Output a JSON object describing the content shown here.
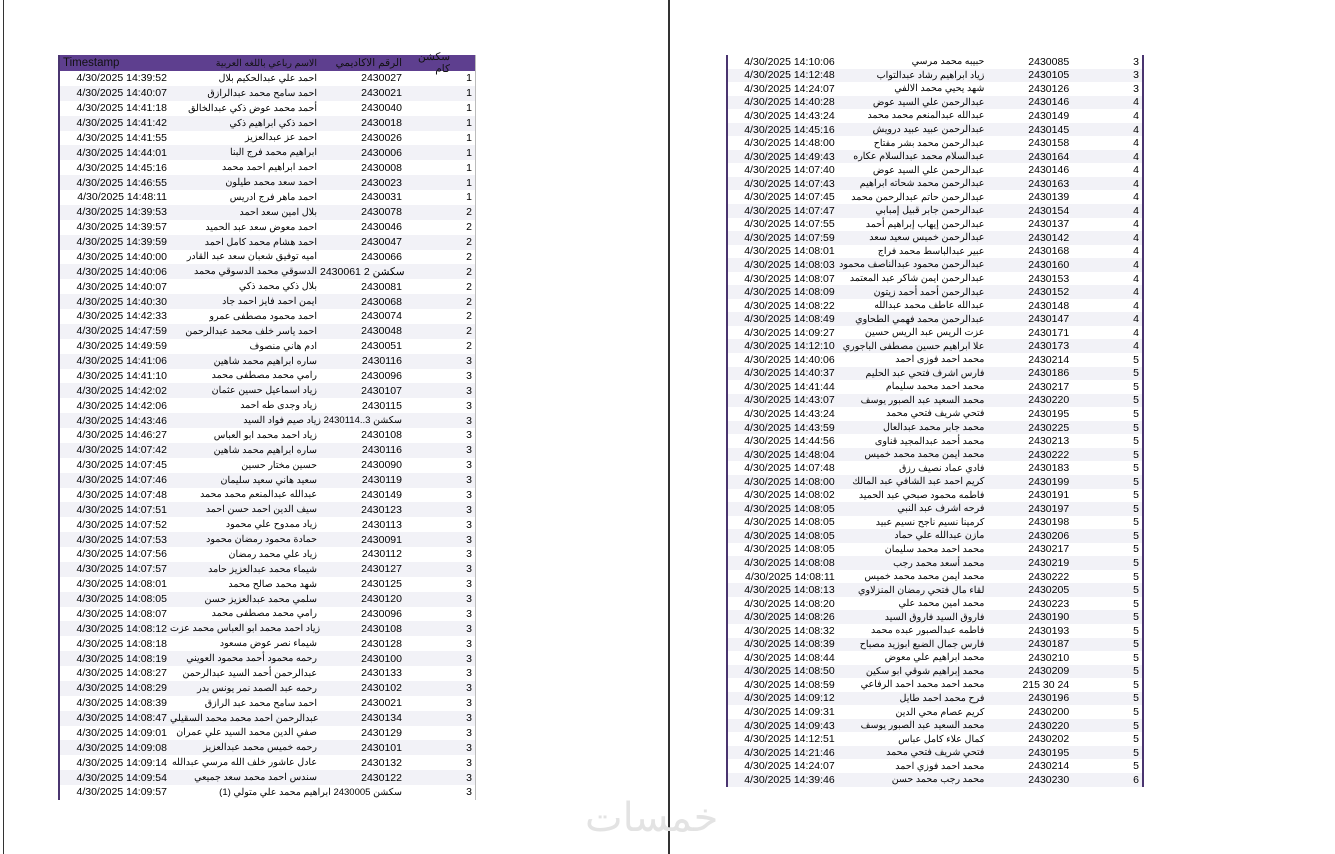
{
  "watermark": "خمسات",
  "header": {
    "timestamp": "Timestamp",
    "name": "الاسم رباعي باللغه العربية",
    "id": "الرقم الاكاديمي",
    "section": "سكشن كام"
  },
  "colors": {
    "header_bg": "#5e3f8f",
    "border": "#4a3570"
  },
  "left_rows": [
    [
      "4/30/2025 14:39:52",
      "احمد علي عبدالحكيم بلال",
      "2430027",
      "1"
    ],
    [
      "4/30/2025 14:40:07",
      "احمد سامح محمد عبدالرازق",
      "2430021",
      "1"
    ],
    [
      "4/30/2025 14:41:18",
      "أحمد محمد عوض ذكي عبدالخالق",
      "2430040",
      "1"
    ],
    [
      "4/30/2025 14:41:42",
      "احمد ذكي ابراهيم ذكي",
      "2430018",
      "1"
    ],
    [
      "4/30/2025 14:41:55",
      "احمد عز عبدالعزيز",
      "2430026",
      "1"
    ],
    [
      "4/30/2025 14:44:01",
      "ابراهيم محمد فرج البنا",
      "2430006",
      "1"
    ],
    [
      "4/30/2025 14:45:16",
      "احمد ابراهيم احمد محمد",
      "2430008",
      "1"
    ],
    [
      "4/30/2025 14:46:55",
      "احمد سعد محمد طيلون",
      "2430023",
      "1"
    ],
    [
      "4/30/2025 14:48:11",
      "احمد ماهر فرج ادريس",
      "2430031",
      "1"
    ],
    [
      "4/30/2025 14:39:53",
      "بلال امين سعد احمد",
      "2430078",
      "2"
    ],
    [
      "4/30/2025 14:39:57",
      "احمد معوض سعد عبد الحميد",
      "2430046",
      "2"
    ],
    [
      "4/30/2025 14:39:59",
      "احمد هشام محمد كامل احمد",
      "2430047",
      "2"
    ],
    [
      "4/30/2025 14:40:00",
      "اميه توفيق شعبان سعد عبد القادر",
      "2430066",
      "2"
    ],
    [
      "4/30/2025 14:40:06",
      "الدسوقي محمد الدسوقي محمد",
      "سكشن 2 2430061",
      "2"
    ],
    [
      "4/30/2025 14:40:07",
      "بلال ذكي محمد ذكي",
      "2430081",
      "2"
    ],
    [
      "4/30/2025 14:40:30",
      "ايمن احمد فايز احمد جاد",
      "2430068",
      "2"
    ],
    [
      "4/30/2025 14:42:33",
      "احمد محمود مصطفى عمرو",
      "2430074",
      "2"
    ],
    [
      "4/30/2025 14:47:59",
      "احمد ياسر خلف محمد عبدالرحمن",
      "2430048",
      "2"
    ],
    [
      "4/30/2025 14:49:59",
      "ادم هاني منصوف",
      "2430051",
      "2"
    ],
    [
      "4/30/2025 14:41:06",
      "ساره ابراهيم محمد شاهين",
      "2430116",
      "3"
    ],
    [
      "4/30/2025 14:41:10",
      "رامي محمد مصطفى محمد",
      "2430096",
      "3"
    ],
    [
      "4/30/2025 14:42:02",
      "زياد اسماعيل حسين عثمان",
      "2430107",
      "3"
    ],
    [
      "4/30/2025 14:42:06",
      "زياد وجدى طه احمد",
      "2430115",
      "3"
    ],
    [
      "4/30/2025 14:43:46",
      "سكشن 3..2430114 زياد صيم فواد السيد",
      "",
      "3"
    ],
    [
      "4/30/2025 14:46:27",
      "زياد احمد محمد ابو العباس",
      "2430108",
      "3"
    ],
    [
      "4/30/2025 14:07:42",
      "ساره ابراهيم محمد شاهين",
      "2430116",
      "3"
    ],
    [
      "4/30/2025 14:07:45",
      "حسين مختار حسين",
      "2430090",
      "3"
    ],
    [
      "4/30/2025 14:07:46",
      "سعيد هاني سعيد سليمان",
      "2430119",
      "3"
    ],
    [
      "4/30/2025 14:07:48",
      "عبدالله عبدالمنعم محمد محمد",
      "2430149",
      "3"
    ],
    [
      "4/30/2025 14:07:51",
      "سيف الدين احمد حسن احمد",
      "2430123",
      "3"
    ],
    [
      "4/30/2025 14:07:52",
      "زياد ممدوح علي محمود",
      "2430113",
      "3"
    ],
    [
      "4/30/2025 14:07:53",
      "حمادة محمود رمضان محمود",
      "2430091",
      "3"
    ],
    [
      "4/30/2025 14:07:56",
      "زياد علي محمد رمضان",
      "2430112",
      "3"
    ],
    [
      "4/30/2025 14:07:57",
      "شيماء محمد عبدالعزيز حامد",
      "2430127",
      "3"
    ],
    [
      "4/30/2025 14:08:01",
      "شهد محمد صالح محمد",
      "2430125",
      "3"
    ],
    [
      "4/30/2025 14:08:05",
      "سلمي محمد عبدالعزيز حسن",
      "2430120",
      "3"
    ],
    [
      "4/30/2025 14:08:07",
      "رامي محمد مصطفى محمد",
      "2430096",
      "3"
    ],
    [
      "4/30/2025 14:08:12",
      "زياد احمد محمد ابو العباس محمد عزت",
      "2430108",
      "3"
    ],
    [
      "4/30/2025 14:08:18",
      "شيماء نصر عوض مسعود",
      "2430128",
      "3"
    ],
    [
      "4/30/2025 14:08:19",
      "رحمه محمود أحمد محمود العويني",
      "2430100",
      "3"
    ],
    [
      "4/30/2025 14:08:27",
      "عبدالرحمن أحمد السيد عبدالرحمن",
      "2430133",
      "3"
    ],
    [
      "4/30/2025 14:08:29",
      "رحمه عبد الصمد نمر يونس بدر",
      "2430102",
      "3"
    ],
    [
      "4/30/2025 14:08:39",
      "احمد سامح محمد عبد الرازق",
      "2430021",
      "3"
    ],
    [
      "4/30/2025 14:08:47",
      "عبدالرحمن احمد محمد محمد السقيلي",
      "2430134",
      "3"
    ],
    [
      "4/30/2025 14:09:01",
      "صفي الدين محمد السيد علي عمران",
      "2430129",
      "3"
    ],
    [
      "4/30/2025 14:09:08",
      "رحمه خميس محمد عبدالعزيز",
      "2430101",
      "3"
    ],
    [
      "4/30/2025 14:09:14",
      "عادل عاشور خلف الله مرسي عبدالله",
      "2430132",
      "3"
    ],
    [
      "4/30/2025 14:09:54",
      "سندس احمد محمد سعد جميعي",
      "2430122",
      "3"
    ],
    [
      "4/30/2025 14:09:57",
      "(1) سكشن 2430005 ابراهيم محمد علي متولي",
      "",
      "3"
    ]
  ],
  "right_rows": [
    [
      "4/30/2025 14:10:06",
      "حبيبه محمد مرسي",
      "2430085",
      "3"
    ],
    [
      "4/30/2025 14:12:48",
      "زياد ابراهيم رشاد عبدالتواب",
      "2430105",
      "3"
    ],
    [
      "4/30/2025 14:24:07",
      "شهد يحيي محمد الالفي",
      "2430126",
      "3"
    ],
    [
      "4/30/2025 14:40:28",
      "عبدالرحمن علي السيد عوض",
      "2430146",
      "4"
    ],
    [
      "4/30/2025 14:43:24",
      "عبدالله عبدالمنعم محمد محمد",
      "2430149",
      "4"
    ],
    [
      "4/30/2025 14:45:16",
      "عبدالرحمن عبيد عبيد درويش",
      "2430145",
      "4"
    ],
    [
      "4/30/2025 14:48:00",
      "عبدالرحمن محمد بشر مفتاح",
      "2430158",
      "4"
    ],
    [
      "4/30/2025 14:49:43",
      "عبدالسلام محمد عبدالسلام عكاره",
      "2430164",
      "4"
    ],
    [
      "4/30/2025 14:07:40",
      "عبدالرحمن علي السيد عوض",
      "2430146",
      "4"
    ],
    [
      "4/30/2025 14:07:43",
      "عبدالرحمن محمد شحاته ابراهيم",
      "2430163",
      "4"
    ],
    [
      "4/30/2025 14:07:45",
      "عبدالرحمن حاتم عبدالرحمن محمد",
      "2430139",
      "4"
    ],
    [
      "4/30/2025 14:07:47",
      "عبدالرحمن جابر قبيل إمبابي",
      "2430154",
      "4"
    ],
    [
      "4/30/2025 14:07:55",
      "عبدالرحمن إيهاب إبراهيم أحمد",
      "2430137",
      "4"
    ],
    [
      "4/30/2025 14:07:59",
      "عبدالرحمن خميس سعيد سعد",
      "2430142",
      "4"
    ],
    [
      "4/30/2025 14:08:01",
      "عبير عبدالباسط محمد فراج",
      "2430168",
      "4"
    ],
    [
      "4/30/2025 14:08:03",
      "عبدالرحمن محمود عبدالناصف محمود",
      "2430160",
      "4"
    ],
    [
      "4/30/2025 14:08:07",
      "عبدالرحمن ايمن شاكر عبد المعتمد",
      "2430153",
      "4"
    ],
    [
      "4/30/2025 14:08:09",
      "عبدالرحمن أحمد أحمد زيتون",
      "2430152",
      "4"
    ],
    [
      "4/30/2025 14:08:22",
      "عبدالله عاطف محمد عبدالله",
      "2430148",
      "4"
    ],
    [
      "4/30/2025 14:08:49",
      "عبدالرحمن محمد فهمي الطحاوي",
      "2430147",
      "4"
    ],
    [
      "4/30/2025 14:09:27",
      "عزت الريس عبد الريس حسين",
      "2430171",
      "4"
    ],
    [
      "4/30/2025 14:12:10",
      "علا ابراهيم حسين مصطفى الباجوري",
      "2430173",
      "4"
    ],
    [
      "4/30/2025 14:40:06",
      "محمد احمد فوزى احمد",
      "2430214",
      "5"
    ],
    [
      "4/30/2025 14:40:37",
      "فارس اشرف فتحي عبد الحليم",
      "2430186",
      "5"
    ],
    [
      "4/30/2025 14:41:44",
      "محمد احمد محمد سليمام",
      "2430217",
      "5"
    ],
    [
      "4/30/2025 14:43:07",
      "محمد السعيد عبد الصبور يوسف",
      "2430220",
      "5"
    ],
    [
      "4/30/2025 14:43:24",
      "فتحي شريف فتحي محمد",
      "2430195",
      "5"
    ],
    [
      "4/30/2025 14:43:59",
      "محمد جابر محمد عبدالعال",
      "2430225",
      "5"
    ],
    [
      "4/30/2025 14:44:56",
      "محمد أحمد عبدالمجيد قناوى",
      "2430213",
      "5"
    ],
    [
      "4/30/2025 14:48:04",
      "محمد ايمن محمد محمد خميس",
      "2430222",
      "5"
    ],
    [
      "4/30/2025 14:07:48",
      "فادي عماد نصيف رزق",
      "2430183",
      "5"
    ],
    [
      "4/30/2025 14:08:00",
      "كريم احمد عبد الشافي عبد المالك",
      "2430199",
      "5"
    ],
    [
      "4/30/2025 14:08:02",
      "فاطمه محمود صبحي عبد الحميد",
      "2430191",
      "5"
    ],
    [
      "4/30/2025 14:08:05",
      "فرحه اشرف عبد النبي",
      "2430197",
      "5"
    ],
    [
      "4/30/2025 14:08:05",
      "كرمينا نسيم ناجح نسيم عبيد",
      "2430198",
      "5"
    ],
    [
      "4/30/2025 14:08:05",
      "مازن عبدالله علي حماد",
      "2430206",
      "5"
    ],
    [
      "4/30/2025 14:08:05",
      "محمد احمد محمد سليمان",
      "2430217",
      "5"
    ],
    [
      "4/30/2025 14:08:08",
      "محمد أسعد محمد رجب",
      "2430219",
      "5"
    ],
    [
      "4/30/2025 14:08:11",
      "محمد ايمن محمد محمد خميس",
      "2430222",
      "5"
    ],
    [
      "4/30/2025 14:08:13",
      "لقاء مال فتحي رمضان المنزلاوي",
      "2430205",
      "5"
    ],
    [
      "4/30/2025 14:08:20",
      "محمد امين محمد علي",
      "2430223",
      "5"
    ],
    [
      "4/30/2025 14:08:26",
      "فاروق السيد فاروق السيد",
      "2430190",
      "5"
    ],
    [
      "4/30/2025 14:08:32",
      "فاطمه عبدالصبور عبده محمد",
      "2430193",
      "5"
    ],
    [
      "4/30/2025 14:08:39",
      "فارس جمال الضبع ابوزيد مصباح",
      "2430187",
      "5"
    ],
    [
      "4/30/2025 14:08:44",
      "محمد ابراهيم علي معوض",
      "2430210",
      "5"
    ],
    [
      "4/30/2025 14:08:50",
      "محمد إبراهيم شوقي ابو سكين",
      "2430209",
      "5"
    ],
    [
      "4/30/2025 14:08:59",
      "محمد احمد محمد احمد الرفاعي",
      "215 30 24",
      "5"
    ],
    [
      "4/30/2025 14:09:12",
      "فرح محمد احمد طايل",
      "2430196",
      "5"
    ],
    [
      "4/30/2025 14:09:31",
      "كريم عصام محي الدين",
      "2430200",
      "5"
    ],
    [
      "4/30/2025 14:09:43",
      "محمد السعيد عبد الصبور يوسف",
      "2430220",
      "5"
    ],
    [
      "4/30/2025 14:12:51",
      "كمال علاء كامل عباس",
      "2430202",
      "5"
    ],
    [
      "4/30/2025 14:21:46",
      "فتحي شريف فتحي محمد",
      "2430195",
      "5"
    ],
    [
      "4/30/2025 14:24:07",
      "محمد احمد فوزي احمد",
      "2430214",
      "5"
    ],
    [
      "4/30/2025 14:39:46",
      "محمد رجب محمد حسن",
      "2430230",
      "6"
    ]
  ]
}
